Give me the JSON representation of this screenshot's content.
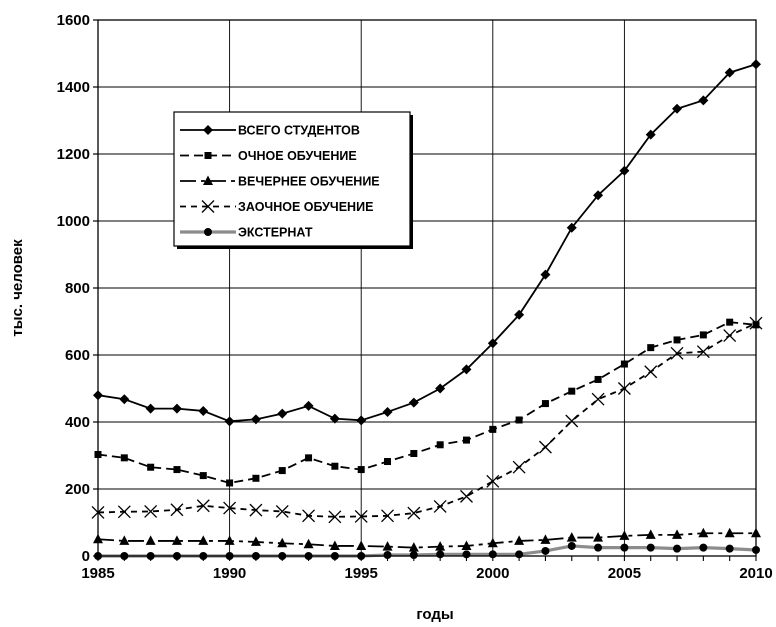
{
  "chart_data": {
    "type": "line",
    "title": "",
    "xlabel": "годы",
    "ylabel": "тыс. человек",
    "xlim": [
      1985,
      2010
    ],
    "ylim": [
      0,
      1600
    ],
    "x_ticks": [
      1985,
      1990,
      1995,
      2000,
      2005,
      2010
    ],
    "y_ticks": [
      0,
      200,
      400,
      600,
      800,
      1000,
      1200,
      1400,
      1600
    ],
    "grid": true,
    "legend_position": "upper-left inside",
    "x": [
      1985,
      1986,
      1987,
      1988,
      1989,
      1990,
      1991,
      1992,
      1993,
      1994,
      1995,
      1996,
      1997,
      1998,
      1999,
      2000,
      2001,
      2002,
      2003,
      2004,
      2005,
      2006,
      2007,
      2008,
      2009,
      2010
    ],
    "series": [
      {
        "name": "ВСЕГО СТУДЕНТОВ",
        "marker": "diamond",
        "line_style": "solid",
        "color": "#000000",
        "values": [
          480,
          468,
          440,
          440,
          433,
          402,
          408,
          425,
          448,
          410,
          405,
          430,
          458,
          500,
          557,
          635,
          720,
          840,
          980,
          1077,
          1150,
          1258,
          1335,
          1360,
          1443,
          1468
        ]
      },
      {
        "name": "ОЧНОЕ ОБУЧЕНИЕ",
        "marker": "square",
        "line_style": "dash",
        "color": "#000000",
        "values": [
          303,
          293,
          265,
          258,
          240,
          218,
          232,
          255,
          293,
          268,
          258,
          282,
          306,
          332,
          346,
          378,
          406,
          455,
          492,
          527,
          573,
          622,
          645,
          660,
          698,
          690
        ]
      },
      {
        "name": "ВЕЧЕРНЕЕ ОБУЧЕНИЕ",
        "marker": "triangle",
        "line_style": "longdash-dot",
        "color": "#000000",
        "values": [
          50,
          45,
          45,
          45,
          45,
          45,
          42,
          38,
          35,
          30,
          30,
          28,
          25,
          28,
          30,
          38,
          45,
          48,
          55,
          55,
          60,
          63,
          63,
          68,
          68,
          68
        ]
      },
      {
        "name": "ЗАОЧНОЕ ОБУЧЕНИЕ",
        "marker": "x",
        "line_style": "shortdash",
        "color": "#000000",
        "values": [
          130,
          132,
          133,
          138,
          150,
          143,
          137,
          133,
          120,
          117,
          118,
          120,
          128,
          148,
          178,
          223,
          265,
          325,
          403,
          468,
          500,
          550,
          605,
          610,
          658,
          695
        ]
      },
      {
        "name": "ЭКСТЕРНАТ",
        "marker": "circle",
        "line_style": "solid-gray",
        "color": "#8c8c8c",
        "values": [
          0,
          0,
          0,
          0,
          0,
          0,
          0,
          0,
          0,
          0,
          0,
          3,
          3,
          5,
          5,
          5,
          5,
          15,
          30,
          25,
          25,
          25,
          22,
          25,
          22,
          18
        ]
      }
    ]
  }
}
